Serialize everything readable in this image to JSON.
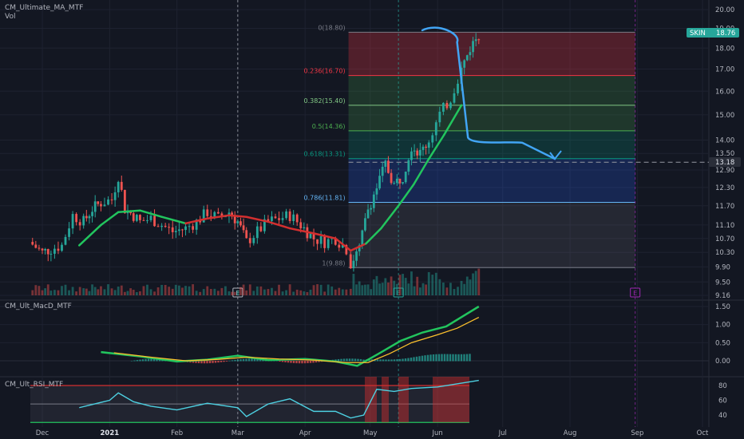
{
  "indicators": {
    "main": "CM_Ultimate_MA_MTF",
    "vol": "Vol",
    "macd": "CM_Ult_MacD_MTF",
    "rsi": "CM_Ult_RSI_MTF"
  },
  "ticker": {
    "symbol": "SKIN",
    "price": "18.76",
    "color": "#26a69a"
  },
  "price_line": {
    "label": "13.18",
    "value": 13.18
  },
  "event_markers": [
    {
      "label": "E",
      "x_date": "2021-03-01"
    },
    {
      "label": "E",
      "x_date": "2021-05-14"
    },
    {
      "label": "E",
      "x_date": "2021-08-31"
    }
  ],
  "chart_data": [
    {
      "type": "candlestick",
      "panel": "price",
      "x_ticks": [
        "Dec",
        "2021",
        "Feb",
        "Mar",
        "Apr",
        "May",
        "Jun",
        "Jul",
        "Aug",
        "Sep",
        "Oct"
      ],
      "y_ticks": [
        "20.00",
        "19.00",
        "18.00",
        "17.00",
        "16.00",
        "15.00",
        "14.00",
        "13.50",
        "12.90",
        "12.30",
        "11.70",
        "11.10",
        "10.70",
        "10.30",
        "9.90",
        "9.50",
        "9.16"
      ],
      "y_scale": "log",
      "ylim": [
        9.16,
        20.0
      ],
      "fib_levels": [
        {
          "label": "0(18.80)",
          "value": 18.8,
          "color": "#787b86"
        },
        {
          "label": "0.236(16.70)",
          "value": 16.7,
          "color": "#f23645"
        },
        {
          "label": "0.382(15.40)",
          "value": 15.4,
          "color": "#81c784"
        },
        {
          "label": "0.5(14.36)",
          "value": 14.36,
          "color": "#4caf50"
        },
        {
          "label": "0.618(13.31)",
          "value": 13.31,
          "color": "#089981"
        },
        {
          "label": "0.786(11.81)",
          "value": 11.81,
          "color": "#64b5f6"
        },
        {
          "label": "1(9.88)",
          "value": 9.88,
          "color": "#787b86"
        }
      ],
      "fib_start": "2021-04-21",
      "fib_end": "2021-08-31",
      "ma_line": {
        "colors": [
          "#d32f2f",
          "#22c55e"
        ],
        "points": [
          [
            "2020-12-18",
            10.5
          ],
          [
            "2020-12-28",
            11.1
          ],
          [
            "2021-01-05",
            11.5
          ],
          [
            "2021-01-15",
            11.55
          ],
          [
            "2021-01-25",
            11.35
          ],
          [
            "2021-02-05",
            11.15
          ],
          [
            "2021-02-15",
            11.3
          ],
          [
            "2021-02-25",
            11.4
          ],
          [
            "2021-03-05",
            11.35
          ],
          [
            "2021-03-15",
            11.2
          ],
          [
            "2021-03-25",
            11.0
          ],
          [
            "2021-04-05",
            10.85
          ],
          [
            "2021-04-15",
            10.7
          ],
          [
            "2021-04-22",
            10.35
          ],
          [
            "2021-04-29",
            10.55
          ],
          [
            "2021-05-06",
            11.0
          ],
          [
            "2021-05-14",
            11.7
          ],
          [
            "2021-05-21",
            12.4
          ],
          [
            "2021-05-28",
            13.3
          ],
          [
            "2021-06-04",
            14.2
          ],
          [
            "2021-06-12",
            15.4
          ]
        ]
      },
      "projection_path": [
        [
          "2021-05-25",
          18.9
        ],
        [
          "2021-06-10",
          18.3
        ],
        [
          "2021-06-15",
          14.1
        ],
        [
          "2021-07-10",
          13.9
        ],
        [
          "2021-07-25",
          13.3
        ]
      ],
      "series": [
        {
          "name": "SKIN",
          "values": [
            [
              "2020-11-25",
              10.6
            ],
            [
              "2020-12-01",
              10.3
            ],
            [
              "2020-12-05",
              10.4
            ],
            [
              "2020-12-10",
              10.5
            ],
            [
              "2020-12-15",
              11.4
            ],
            [
              "2020-12-20",
              11.2
            ],
            [
              "2020-12-24",
              11.6
            ],
            [
              "2020-12-28",
              11.8
            ],
            [
              "2021-01-02",
              11.9
            ],
            [
              "2021-01-05",
              12.7
            ],
            [
              "2021-01-08",
              11.6
            ],
            [
              "2021-01-12",
              11.4
            ],
            [
              "2021-01-15",
              11.2
            ],
            [
              "2021-01-20",
              11.3
            ],
            [
              "2021-01-25",
              11.1
            ],
            [
              "2021-01-30",
              10.9
            ],
            [
              "2021-02-05",
              11.0
            ],
            [
              "2021-02-10",
              11.2
            ],
            [
              "2021-02-15",
              11.5
            ],
            [
              "2021-02-20",
              11.3
            ],
            [
              "2021-02-25",
              11.5
            ],
            [
              "2021-03-01",
              11.2
            ],
            [
              "2021-03-05",
              10.6
            ],
            [
              "2021-03-10",
              10.9
            ],
            [
              "2021-03-15",
              11.2
            ],
            [
              "2021-03-20",
              11.3
            ],
            [
              "2021-03-25",
              11.4
            ],
            [
              "2021-03-30",
              11.1
            ],
            [
              "2021-04-05",
              10.7
            ],
            [
              "2021-04-10",
              10.6
            ],
            [
              "2021-04-15",
              10.7
            ],
            [
              "2021-04-20",
              10.4
            ],
            [
              "2021-04-22",
              10.0
            ],
            [
              "2021-04-26",
              10.4
            ],
            [
              "2021-04-30",
              11.6
            ],
            [
              "2021-05-04",
              12.3
            ],
            [
              "2021-05-08",
              13.1
            ],
            [
              "2021-05-12",
              12.4
            ],
            [
              "2021-05-16",
              12.7
            ],
            [
              "2021-05-20",
              13.8
            ],
            [
              "2021-05-24",
              13.5
            ],
            [
              "2021-05-28",
              14.0
            ],
            [
              "2021-06-02",
              15.0
            ],
            [
              "2021-06-07",
              15.7
            ],
            [
              "2021-06-12",
              17.0
            ],
            [
              "2021-06-16",
              18.0
            ],
            [
              "2021-06-20",
              18.76
            ]
          ]
        }
      ]
    },
    {
      "type": "line",
      "panel": "macd",
      "y_ticks": [
        "1.50",
        "1.00",
        "0.50",
        "0.00"
      ],
      "ylim": [
        -0.3,
        1.7
      ],
      "series": [
        {
          "color": "#22c55e",
          "values": [
            [
              "2020-12-28",
              0.24
            ],
            [
              "2021-01-15",
              0.12
            ],
            [
              "2021-02-01",
              -0.02
            ],
            [
              "2021-02-15",
              0.03
            ],
            [
              "2021-03-01",
              0.14
            ],
            [
              "2021-03-15",
              0.02
            ],
            [
              "2021-04-01",
              0.05
            ],
            [
              "2021-04-15",
              -0.02
            ],
            [
              "2021-04-25",
              -0.14
            ],
            [
              "2021-05-05",
              0.2
            ],
            [
              "2021-05-15",
              0.55
            ],
            [
              "2021-05-25",
              0.78
            ],
            [
              "2021-06-05",
              0.95
            ],
            [
              "2021-06-20",
              1.5
            ]
          ]
        },
        {
          "color": "#fbc02d",
          "values": [
            [
              "2021-01-03",
              0.22
            ],
            [
              "2021-01-20",
              0.1
            ],
            [
              "2021-02-05",
              0.0
            ],
            [
              "2021-02-20",
              0.04
            ],
            [
              "2021-03-05",
              0.1
            ],
            [
              "2021-03-20",
              0.05
            ],
            [
              "2021-04-05",
              0.02
            ],
            [
              "2021-04-20",
              -0.05
            ],
            [
              "2021-04-30",
              -0.05
            ],
            [
              "2021-05-10",
              0.2
            ],
            [
              "2021-05-20",
              0.5
            ],
            [
              "2021-06-01",
              0.72
            ],
            [
              "2021-06-10",
              0.9
            ],
            [
              "2021-06-20",
              1.2
            ]
          ]
        }
      ]
    },
    {
      "type": "line",
      "panel": "rsi",
      "y_ticks": [
        "80",
        "60",
        "40"
      ],
      "ylim": [
        25,
        90
      ],
      "series": [
        {
          "color": "#4dd0e1",
          "values": [
            [
              "2020-12-18",
              50
            ],
            [
              "2021-01-01",
              60
            ],
            [
              "2021-01-05",
              70
            ],
            [
              "2021-01-12",
              58
            ],
            [
              "2021-01-20",
              52
            ],
            [
              "2021-02-01",
              47
            ],
            [
              "2021-02-15",
              56
            ],
            [
              "2021-03-01",
              50
            ],
            [
              "2021-03-05",
              38
            ],
            [
              "2021-03-15",
              55
            ],
            [
              "2021-03-25",
              62
            ],
            [
              "2021-04-05",
              45
            ],
            [
              "2021-04-15",
              45
            ],
            [
              "2021-04-22",
              36
            ],
            [
              "2021-04-28",
              40
            ],
            [
              "2021-05-04",
              75
            ],
            [
              "2021-05-12",
              72
            ],
            [
              "2021-05-20",
              76
            ],
            [
              "2021-06-01",
              78
            ],
            [
              "2021-06-20",
              87
            ]
          ]
        }
      ]
    }
  ]
}
